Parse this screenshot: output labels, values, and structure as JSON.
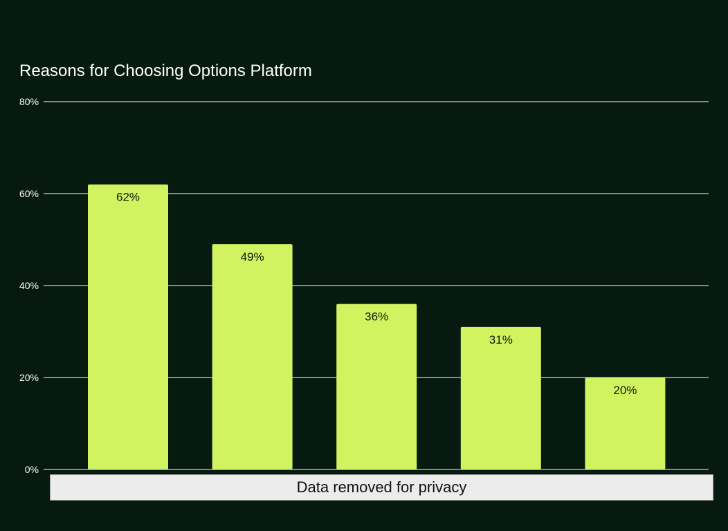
{
  "colors": {
    "background": "#061a10",
    "bar": "#d1f360",
    "grid": "#ffffff",
    "text": "#ffffff",
    "label_text": "#0b1a0b"
  },
  "privacy_notice": "Data removed for privacy",
  "chart_data": {
    "type": "bar",
    "title": "Reasons for Choosing Options Platform",
    "xlabel": "",
    "ylabel": "",
    "categories": [
      "",
      "",
      "",
      "",
      ""
    ],
    "values": [
      62,
      49,
      36,
      31,
      20
    ],
    "value_labels": [
      "62%",
      "49%",
      "36%",
      "31%",
      "20%"
    ],
    "ylim": [
      0,
      80
    ],
    "yticks": [
      0,
      20,
      40,
      60,
      80
    ],
    "ytick_labels": [
      "0%",
      "20%",
      "40%",
      "60%",
      "80%"
    ],
    "grid": true,
    "legend": "none"
  }
}
